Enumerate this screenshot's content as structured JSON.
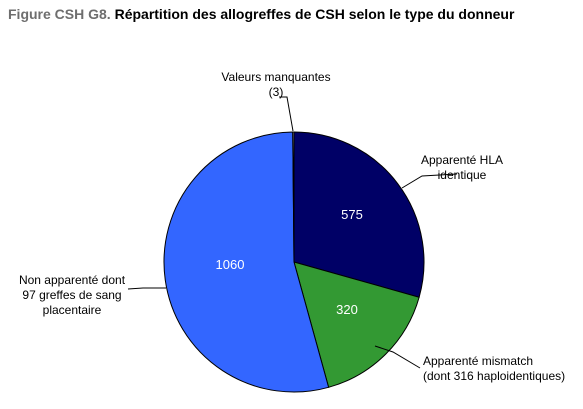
{
  "figure": {
    "label": "Figure CSH G8.",
    "title": "Répartition des allogreffes de CSH selon le type du donneur"
  },
  "chart_data": {
    "type": "pie",
    "title": "Répartition des allogreffes de CSH selon le type du donneur",
    "start_angle_deg": 0,
    "direction": "clockwise",
    "slices": [
      {
        "name": "Apparenté HLA identique",
        "label_lines": [
          "Apparenté HLA",
          "identique"
        ],
        "value": 575,
        "show_value": true,
        "color": "#000066"
      },
      {
        "name": "Apparenté mismatch (dont 316 haploidentiques)",
        "label_lines": [
          "Apparenté mismatch",
          "(dont 316 haploidentiques)"
        ],
        "value": 320,
        "show_value": true,
        "color": "#339933"
      },
      {
        "name": "Non apparenté dont 97 greffes de sang placentaire",
        "label_lines": [
          "Non apparenté dont",
          "97 greffes de sang",
          "placentaire"
        ],
        "value": 1060,
        "show_value": true,
        "color": "#3366ff"
      },
      {
        "name": "Valeurs manquantes (3)",
        "label_lines": [
          "Valeurs manquantes",
          "(3)"
        ],
        "value": 3,
        "show_value": false,
        "color": "#ffffff"
      }
    ],
    "legend": "none",
    "outline_color": "#000000"
  }
}
